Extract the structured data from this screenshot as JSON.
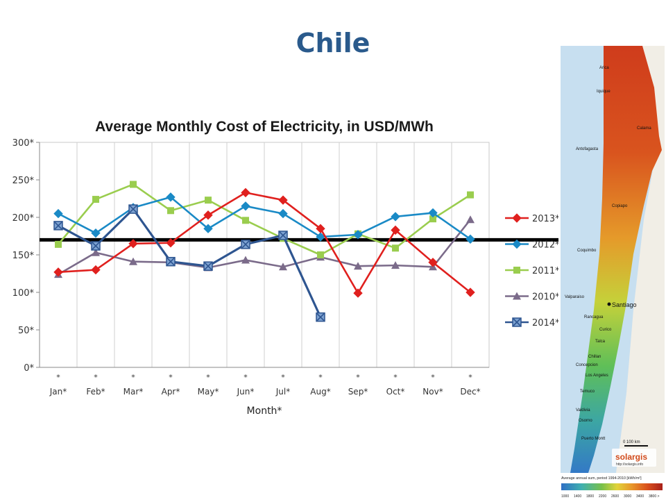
{
  "slide": {
    "title": "Chile"
  },
  "map": {
    "place_labels": [
      "Arica",
      "Iquique",
      "Calama",
      "Antofagasta",
      "Copiapo",
      "Coquimbo",
      "Valparaiso",
      "Santiago",
      "Rancagua",
      "Curico",
      "Talca",
      "Chillan",
      "Concepcion",
      "Los Angeles",
      "Temuco",
      "Valdivia",
      "Osorno",
      "Puerto Montt"
    ],
    "brand": "solargis",
    "url": "http://solargis.info",
    "scale_label": "0     100 km",
    "legend_caption": "Average annual sum, period 1994-2010 [kWh/m²]",
    "legend_values": [
      "1000",
      "1400",
      "1800",
      "2200",
      "2600",
      "3000",
      "3400",
      "3800 >"
    ]
  },
  "chart_data": {
    "type": "line",
    "title": "Average Monthly Cost of Electricity, in USD/MWh",
    "xlabel": "Month*",
    "ylabel": "",
    "categories": [
      "Jan*",
      "Feb*",
      "Mar*",
      "Apr*",
      "May*",
      "Jun*",
      "Jul*",
      "Aug*",
      "Sep*",
      "Oct*",
      "Nov*",
      "Dec*"
    ],
    "category_top_marks": [
      "*",
      "*",
      "*",
      "*",
      "*",
      "*",
      "*",
      "*",
      "*",
      "*",
      "*",
      "*"
    ],
    "y_ticks": [
      "0*",
      "50*",
      "100*",
      "150*",
      "200*",
      "250*",
      "300*"
    ],
    "ylim": [
      0,
      300
    ],
    "grid": "vertical",
    "legend_position": "right",
    "reference_line": {
      "value": 170,
      "color": "#000000"
    },
    "series": [
      {
        "name": "2013*",
        "color": "#e0201e",
        "marker": "diamond",
        "values": [
          127,
          130,
          165,
          166,
          203,
          233,
          223,
          185,
          99,
          183,
          140,
          100
        ]
      },
      {
        "name": "2012*",
        "color": "#1a8ac6",
        "marker": "diamond",
        "values": [
          205,
          179,
          213,
          227,
          185,
          215,
          205,
          174,
          177,
          201,
          206,
          171
        ]
      },
      {
        "name": "2011*",
        "color": "#9acd4e",
        "marker": "square",
        "values": [
          164,
          224,
          244,
          209,
          223,
          196,
          172,
          150,
          178,
          159,
          198,
          230
        ]
      },
      {
        "name": "2010*",
        "color": "#7b6b8a",
        "marker": "triangle",
        "values": [
          124,
          153,
          141,
          140,
          133,
          143,
          134,
          147,
          135,
          136,
          134,
          197
        ]
      },
      {
        "name": "2014*",
        "color": "#2e5590",
        "marker": "xsquare",
        "values": [
          189,
          162,
          211,
          141,
          135,
          164,
          176,
          67,
          null,
          null,
          null,
          null
        ]
      }
    ]
  }
}
